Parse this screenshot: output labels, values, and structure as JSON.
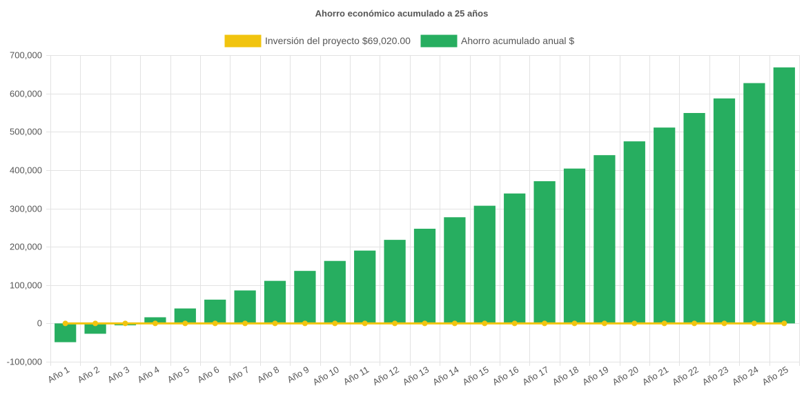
{
  "chart_data": {
    "type": "bar",
    "title": "Ahorro económico acumulado a 25 años",
    "legend_position": "top-center",
    "grid": true,
    "categories": [
      "Año 1",
      "Año 2",
      "Año 3",
      "Año 4",
      "Año 5",
      "Año 6",
      "Año 7",
      "Año 8",
      "Año 9",
      "Año 10",
      "Año 11",
      "Año 12",
      "Año 13",
      "Año 14",
      "Año 15",
      "Año 16",
      "Año 17",
      "Año 18",
      "Año 19",
      "Año 20",
      "Año 21",
      "Año 22",
      "Año 23",
      "Año 24",
      "Año 25"
    ],
    "ylim": [
      -100000,
      700000
    ],
    "yticks": [
      -100000,
      0,
      100000,
      200000,
      300000,
      400000,
      500000,
      600000,
      700000
    ],
    "ytick_labels": [
      "-100,000",
      "0",
      "100,000",
      "200,000",
      "300,000",
      "400,000",
      "500,000",
      "600,000",
      "700,000"
    ],
    "series": [
      {
        "name": "Inversión del proyecto $69,020.00",
        "kind": "line",
        "color": "#f1c40f",
        "values": [
          0,
          0,
          0,
          0,
          0,
          0,
          0,
          0,
          0,
          0,
          0,
          0,
          0,
          0,
          0,
          0,
          0,
          0,
          0,
          0,
          0,
          0,
          0,
          0,
          0
        ]
      },
      {
        "name": "Ahorro acumulado anual $",
        "kind": "bar",
        "color": "#27ae60",
        "values": [
          -49000,
          -27000,
          -5000,
          16000,
          39000,
          62000,
          86000,
          111000,
          137000,
          163000,
          190000,
          218000,
          247000,
          277000,
          307000,
          339000,
          371000,
          404000,
          439000,
          475000,
          511000,
          549000,
          587000,
          627000,
          668000
        ]
      }
    ]
  }
}
